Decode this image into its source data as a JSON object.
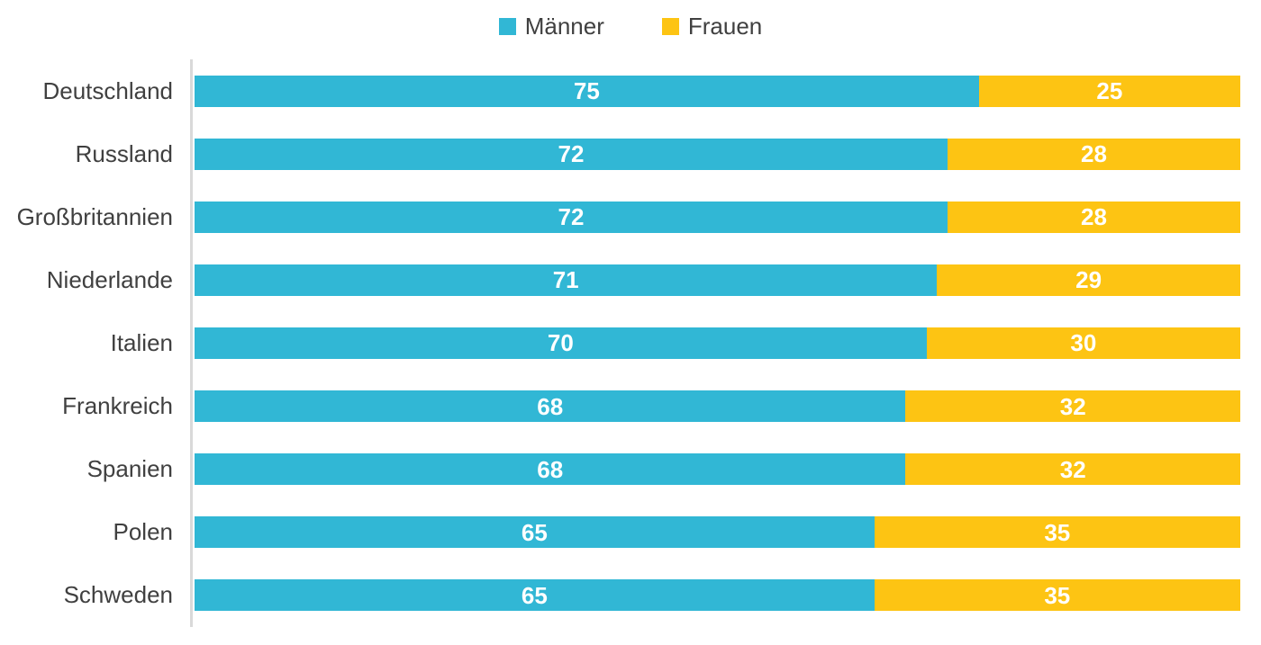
{
  "chart_data": {
    "type": "bar",
    "orientation": "horizontal",
    "stacked": true,
    "title": "",
    "xlabel": "",
    "ylabel": "",
    "xlim": [
      0,
      100
    ],
    "grid": false,
    "legend_position": "top-center",
    "value_labels": "inside-center-white-bold",
    "categories": [
      "Deutschland",
      "Russland",
      "Großbritannien",
      "Niederlande",
      "Italien",
      "Frankreich",
      "Spanien",
      "Polen",
      "Schweden"
    ],
    "series": [
      {
        "name": "Männer",
        "color": "#31B7D5",
        "values": [
          75,
          72,
          72,
          71,
          70,
          68,
          68,
          65,
          65
        ]
      },
      {
        "name": "Frauen",
        "color": "#FDC413",
        "values": [
          25,
          28,
          28,
          29,
          30,
          32,
          32,
          35,
          35
        ]
      }
    ]
  },
  "legend": {
    "items": [
      {
        "label": "Männer",
        "color": "#31B7D5"
      },
      {
        "label": "Frauen",
        "color": "#FDC413"
      }
    ]
  },
  "colors": {
    "maenner": "#31B7D5",
    "frauen": "#FDC413",
    "category_text": "#404040",
    "legend_text": "#404040",
    "value_text": "#FFFFFF",
    "axis_line": "#D9D9D9",
    "background": "#FFFFFF"
  }
}
